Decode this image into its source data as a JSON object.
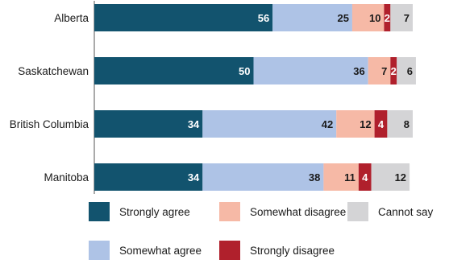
{
  "chart_data": {
    "type": "bar",
    "orientation": "horizontal",
    "stacked": true,
    "categories": [
      "Alberta",
      "Saskatchewan",
      "British Columbia",
      "Manitoba"
    ],
    "series": [
      {
        "name": "Strongly agree",
        "color": "#12536e",
        "label_color": "#ffffff",
        "values": [
          56,
          50,
          34,
          34
        ]
      },
      {
        "name": "Somewhat agree",
        "color": "#aec3e6",
        "label_color": "#1a1a1a",
        "values": [
          25,
          36,
          42,
          38
        ]
      },
      {
        "name": "Somewhat disagree",
        "color": "#f6b9a6",
        "label_color": "#1a1a1a",
        "values": [
          10,
          7,
          12,
          11
        ]
      },
      {
        "name": "Strongly disagree",
        "color": "#b0202c",
        "label_color": "#ffffff",
        "values": [
          2,
          2,
          4,
          4
        ]
      },
      {
        "name": "Cannot say",
        "color": "#d4d4d6",
        "label_color": "#1a1a1a",
        "values": [
          7,
          6,
          8,
          12
        ]
      }
    ],
    "xlim": [
      0,
      100
    ],
    "grid": false,
    "legend_position": "bottom",
    "title": "",
    "xlabel": "",
    "ylabel": ""
  }
}
